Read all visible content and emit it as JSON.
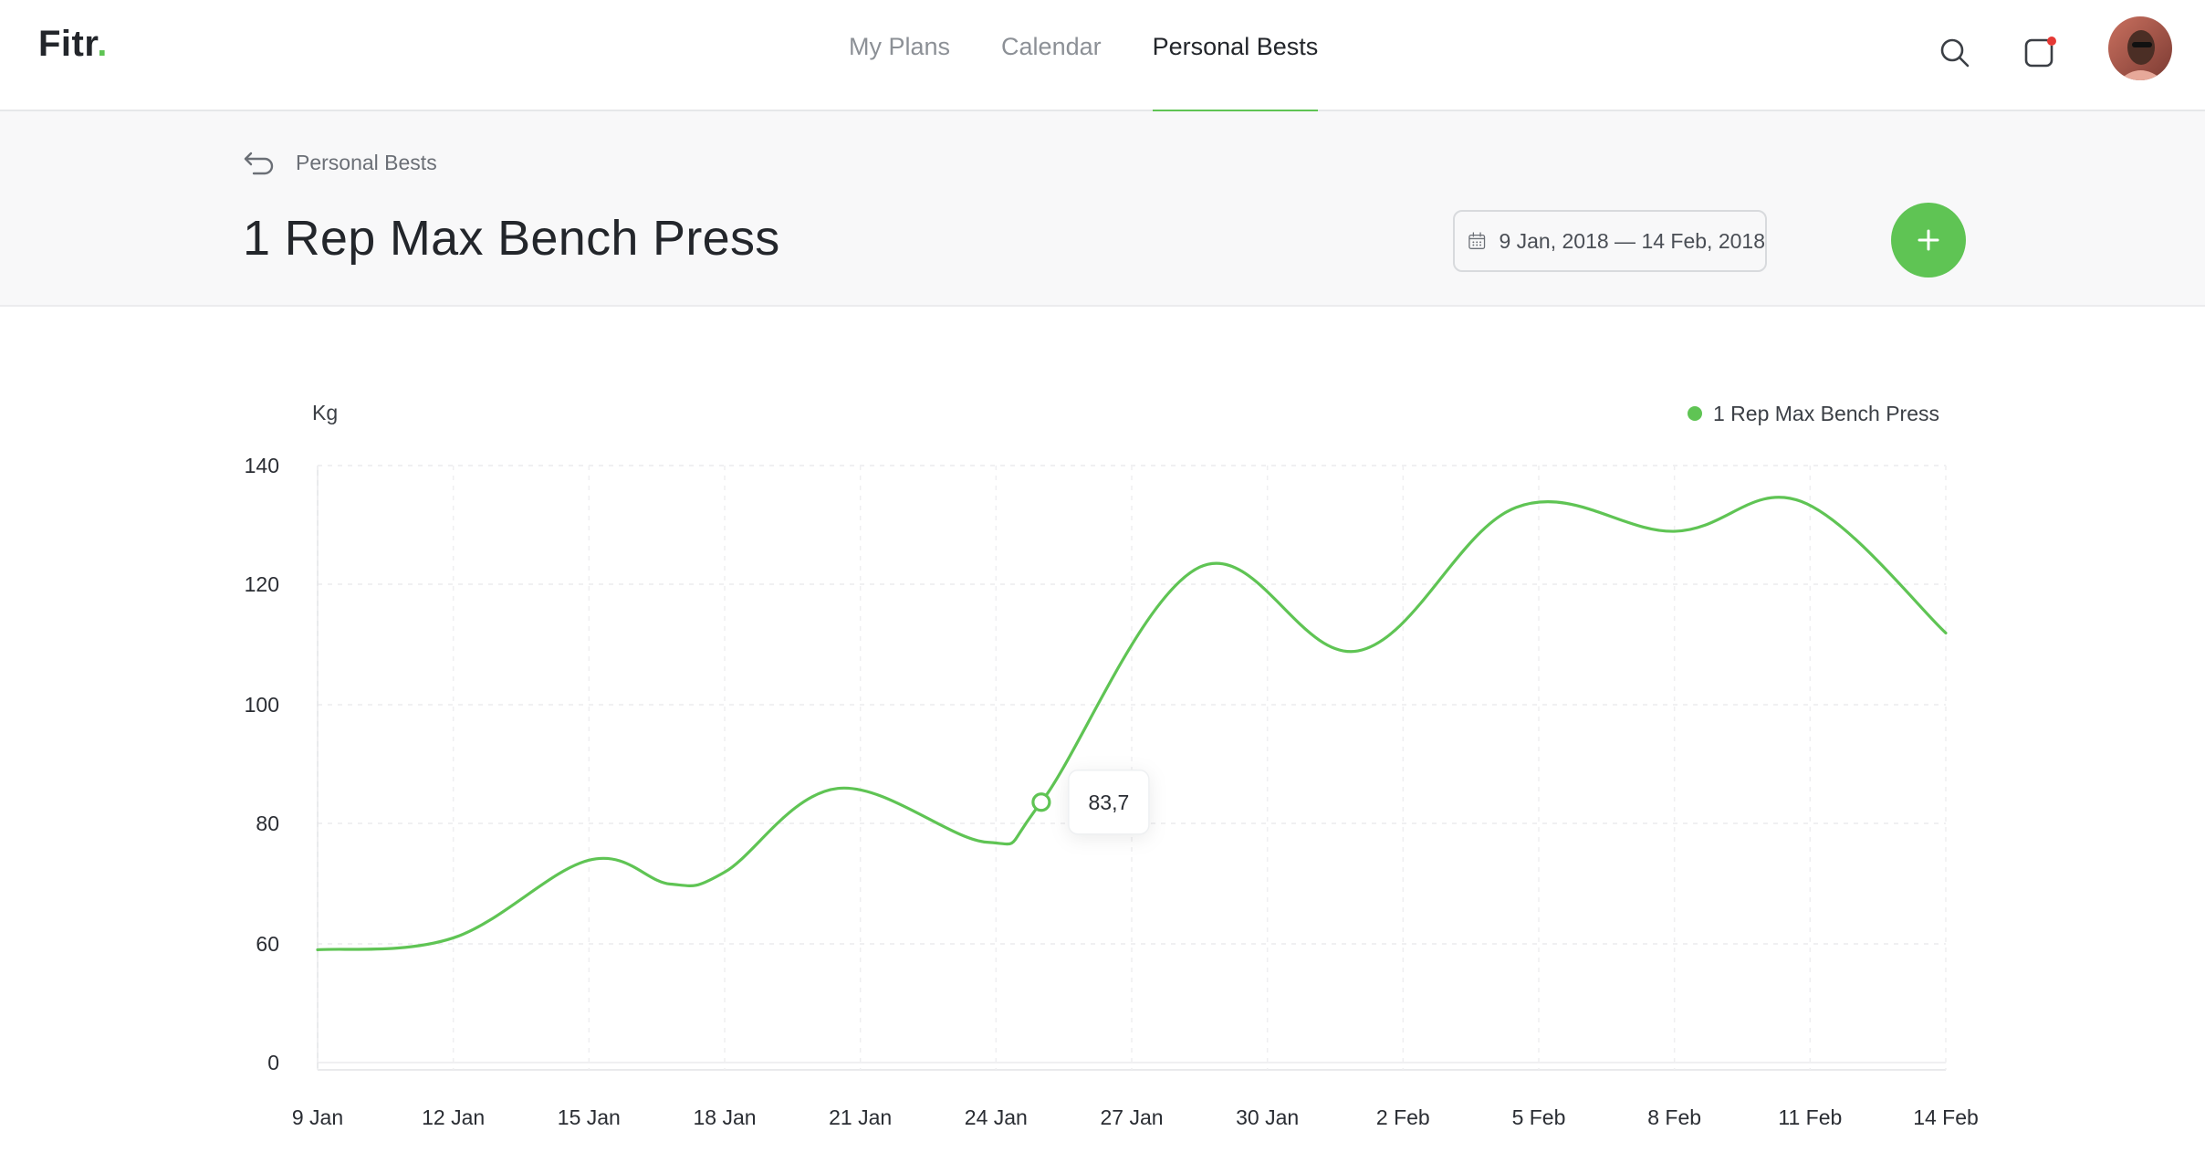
{
  "app": {
    "logo_text": "Fitr",
    "logo_dot": "."
  },
  "nav": {
    "items": [
      {
        "label": "My Plans",
        "active": false
      },
      {
        "label": "Calendar",
        "active": false
      },
      {
        "label": "Personal Bests",
        "active": true
      }
    ]
  },
  "header_icons": [
    "search-icon",
    "notification-icon",
    "avatar"
  ],
  "breadcrumb": {
    "label": "Personal Bests",
    "icon": "back-arrow-icon"
  },
  "page": {
    "title": "1 Rep Max Bench Press",
    "date_range": "9 Jan, 2018 — 14 Feb, 2018",
    "add_icon": "plus-icon"
  },
  "colors": {
    "accent": "#5fc454",
    "notification_dot": "#e53935",
    "text_dark": "#23262b",
    "text_muted": "#8c9096"
  },
  "chart_data": {
    "type": "line",
    "ylabel": "Kg",
    "yticks": [
      "140",
      "120",
      "100",
      "80",
      "60",
      "0"
    ],
    "ylim": [
      0,
      140
    ],
    "x": [
      "9 Jan",
      "12 Jan",
      "15 Jan",
      "18 Jan",
      "21 Jan",
      "24 Jan",
      "27 Jan",
      "30 Jan",
      "2 Feb",
      "5 Feb",
      "8 Feb",
      "11 Feb",
      "14 Feb"
    ],
    "legend": {
      "position": "top-right"
    },
    "grid": true,
    "series": [
      {
        "name": "1 Rep Max Bench Press",
        "color": "#5fc454",
        "points": [
          {
            "x": "9 Jan",
            "y": 57
          },
          {
            "x": "12 Jan",
            "y": 61
          },
          {
            "x": "15 Jan",
            "y": 74
          },
          {
            "x": "16.8 Jan",
            "y": 70
          },
          {
            "x": "18 Jan",
            "y": 72
          },
          {
            "x": "20.5 Jan",
            "y": 86
          },
          {
            "x": "23.8 Jan",
            "y": 77
          },
          {
            "x": "25 Jan",
            "y": 83.7
          },
          {
            "x": "28.5 Jan",
            "y": 123
          },
          {
            "x": "1 Feb",
            "y": 109
          },
          {
            "x": "4.5 Feb",
            "y": 133
          },
          {
            "x": "8 Feb",
            "y": 129
          },
          {
            "x": "10.8 Feb",
            "y": 134
          },
          {
            "x": "14 Feb",
            "y": 112
          }
        ]
      }
    ],
    "highlight": {
      "x": "25 Jan",
      "label": "83,7"
    }
  }
}
